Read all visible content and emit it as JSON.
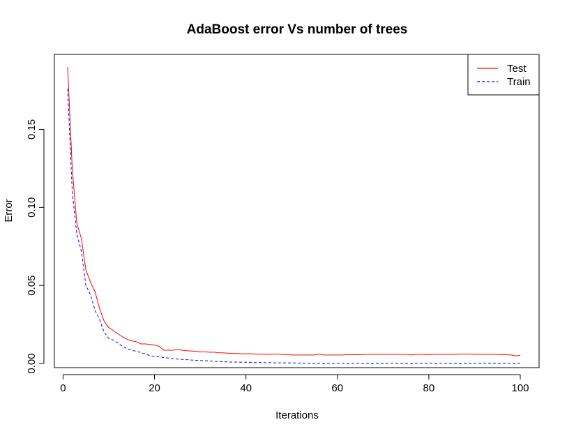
{
  "chart_data": {
    "type": "line",
    "title": "AdaBoost error Vs number of trees",
    "xlabel": "Iterations",
    "ylabel": "Error",
    "xlim": [
      1,
      100
    ],
    "ylim": [
      0,
      0.19
    ],
    "x_ticks": [
      0,
      20,
      40,
      60,
      80,
      100
    ],
    "x_tick_labels": [
      "0",
      "20",
      "40",
      "60",
      "80",
      "100"
    ],
    "y_ticks": [
      0.0,
      0.05,
      0.1,
      0.15
    ],
    "y_tick_labels": [
      "0.00",
      "0.05",
      "0.10",
      "0.15"
    ],
    "grid": false,
    "legend_position": "top-right",
    "series": [
      {
        "name": "Test",
        "color": "#ff0000",
        "dash": "solid",
        "values": [
          0.19,
          0.125,
          0.09,
          0.08,
          0.06,
          0.052,
          0.046,
          0.035,
          0.027,
          0.023,
          0.021,
          0.019,
          0.017,
          0.0155,
          0.0145,
          0.014,
          0.0125,
          0.0125,
          0.0122,
          0.0118,
          0.011,
          0.0085,
          0.0085,
          0.0085,
          0.009,
          0.0085,
          0.0082,
          0.008,
          0.0078,
          0.0074,
          0.0074,
          0.0072,
          0.0072,
          0.0068,
          0.0068,
          0.0066,
          0.0064,
          0.0064,
          0.0062,
          0.0062,
          0.0062,
          0.006,
          0.006,
          0.0058,
          0.0058,
          0.006,
          0.006,
          0.0058,
          0.0056,
          0.0054,
          0.0054,
          0.0054,
          0.0054,
          0.0054,
          0.0054,
          0.006,
          0.0054,
          0.0054,
          0.0054,
          0.0054,
          0.0054,
          0.0056,
          0.0056,
          0.0056,
          0.0056,
          0.0058,
          0.0058,
          0.0058,
          0.0058,
          0.0058,
          0.0058,
          0.0058,
          0.0058,
          0.0058,
          0.0058,
          0.0054,
          0.0058,
          0.0058,
          0.0058,
          0.0056,
          0.0058,
          0.0058,
          0.0058,
          0.0058,
          0.0058,
          0.0058,
          0.006,
          0.006,
          0.006,
          0.0058,
          0.0058,
          0.0058,
          0.0058,
          0.0058,
          0.0058,
          0.0056,
          0.0056,
          0.0054,
          0.0048,
          0.0052
        ]
      },
      {
        "name": "Train",
        "color": "#0000ff",
        "dash": "dashed",
        "values": [
          0.176,
          0.11,
          0.083,
          0.072,
          0.05,
          0.044,
          0.034,
          0.028,
          0.02,
          0.016,
          0.015,
          0.013,
          0.011,
          0.0095,
          0.0085,
          0.0078,
          0.007,
          0.006,
          0.005,
          0.0045,
          0.0042,
          0.0038,
          0.0035,
          0.003,
          0.0028,
          0.0026,
          0.0024,
          0.0022,
          0.002,
          0.0019,
          0.0018,
          0.0016,
          0.0014,
          0.0012,
          0.0011,
          0.001,
          0.0009,
          0.0009,
          0.0008,
          0.0008,
          0.0007,
          0.0006,
          0.0006,
          0.0005,
          0.0005,
          0.0004,
          0.0004,
          0.0004,
          0.0003,
          0.0003,
          0.0003,
          0.0002,
          0.0002,
          0.0002,
          0.0002,
          0.0002,
          0.0001,
          0.0001,
          0.0001,
          0.0001,
          0.0001,
          0.0001,
          0.0001,
          0.0001,
          0.0001,
          0.0001,
          0.0001,
          0.0001,
          0.0001,
          0.0001,
          0.0001,
          0.0001,
          0.0001,
          0.0001,
          0.0001,
          0.0001,
          0.0001,
          0.0001,
          0.0001,
          0.0001,
          0.0001,
          0.0001,
          0.0001,
          0.0001,
          0.0001,
          0.0001,
          0.0001,
          0.0001,
          0.0001,
          0.0001,
          0.0001,
          0.0001,
          0.0001,
          0.0001,
          0.0001,
          0.0001,
          0.0001,
          0.0001,
          0.0001,
          0.0001
        ]
      }
    ]
  }
}
